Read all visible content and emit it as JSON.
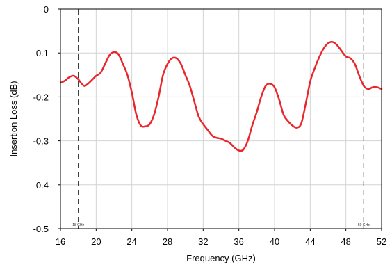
{
  "chart_data": {
    "type": "line",
    "xlabel": "Frequency (GHz)",
    "ylabel": "Insertion Loss (dB)",
    "xlim": [
      16,
      52
    ],
    "ylim": [
      -0.5,
      0
    ],
    "x_ticks": [
      16,
      20,
      24,
      28,
      32,
      36,
      40,
      44,
      48,
      52
    ],
    "x_tick_labels": [
      "16",
      "20",
      "24",
      "28",
      "32",
      "36",
      "40",
      "44",
      "48",
      "52"
    ],
    "y_ticks": [
      0,
      -0.1,
      -0.2,
      -0.3,
      -0.4,
      -0.5
    ],
    "y_tick_labels": [
      "0",
      "-0.1",
      "-0.2",
      "-0.3",
      "-0.4",
      "-0.5"
    ],
    "grid": true,
    "line_color": "#e8262b",
    "markers": [
      {
        "x": 18,
        "label": "18 GHz"
      },
      {
        "x": 50,
        "label": "50 GHz"
      }
    ],
    "series": [
      {
        "x": [
          16.0,
          16.5,
          17.0,
          17.5,
          18.0,
          18.3,
          18.7,
          19.2,
          19.6,
          20.0,
          20.5,
          21.0,
          21.5,
          22.0,
          22.5,
          23.0,
          23.5,
          24.0,
          24.5,
          25.0,
          25.5,
          26.0,
          26.5,
          27.0,
          27.5,
          28.0,
          28.5,
          29.0,
          29.5,
          30.0,
          30.5,
          31.0,
          31.5,
          32.0,
          32.5,
          33.0,
          33.5,
          34.0,
          34.5,
          35.0,
          35.5,
          36.0,
          36.5,
          37.0,
          37.5,
          38.0,
          38.5,
          39.0,
          39.5,
          40.0,
          40.5,
          41.0,
          41.5,
          42.0,
          42.5,
          43.0,
          43.5,
          44.0,
          44.5,
          45.0,
          45.5,
          46.0,
          46.5,
          47.0,
          47.5,
          48.0,
          48.5,
          49.0,
          49.5,
          50.0,
          50.5,
          51.0,
          51.5,
          52.0
        ],
        "y": [
          -0.168,
          -0.163,
          -0.155,
          -0.152,
          -0.16,
          -0.168,
          -0.175,
          -0.168,
          -0.16,
          -0.152,
          -0.145,
          -0.125,
          -0.105,
          -0.098,
          -0.103,
          -0.125,
          -0.15,
          -0.19,
          -0.24,
          -0.265,
          -0.267,
          -0.262,
          -0.24,
          -0.2,
          -0.15,
          -0.125,
          -0.112,
          -0.112,
          -0.125,
          -0.15,
          -0.175,
          -0.21,
          -0.245,
          -0.262,
          -0.275,
          -0.288,
          -0.293,
          -0.295,
          -0.3,
          -0.305,
          -0.315,
          -0.322,
          -0.32,
          -0.3,
          -0.265,
          -0.235,
          -0.2,
          -0.175,
          -0.17,
          -0.178,
          -0.205,
          -0.24,
          -0.255,
          -0.265,
          -0.27,
          -0.26,
          -0.215,
          -0.165,
          -0.135,
          -0.11,
          -0.09,
          -0.078,
          -0.075,
          -0.082,
          -0.095,
          -0.108,
          -0.112,
          -0.125,
          -0.152,
          -0.175,
          -0.182,
          -0.178,
          -0.178,
          -0.182
        ]
      }
    ]
  }
}
